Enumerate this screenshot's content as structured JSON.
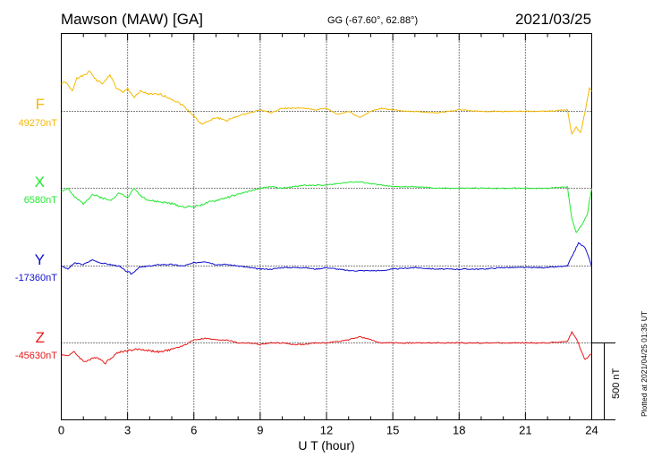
{
  "header": {
    "station": "Mawson (MAW)  [GA]",
    "coords": "GG (-67.60°,  62.88°)",
    "date": "2021/03/25"
  },
  "plotted_note": "Plotted at 2021/04/25 01:35 UT",
  "chart_data": {
    "type": "line",
    "title": "Mawson (MAW)  [GA]",
    "xlabel": "U T (hour)",
    "xlim": [
      0,
      24
    ],
    "xticks": [
      0,
      3,
      6,
      9,
      12,
      15,
      18,
      21,
      24
    ],
    "x_tick_labels": [
      "0",
      "3",
      "6",
      "9",
      "12",
      "15",
      "18",
      "21",
      "24"
    ],
    "scale_bar_label": "500 nT",
    "scale_bar_nT": 500,
    "grid": true,
    "series": [
      {
        "name": "F",
        "baseline_label": "49270nT",
        "color": "#f5b800",
        "points": [
          [
            0,
            180
          ],
          [
            0.2,
            190
          ],
          [
            0.5,
            130
          ],
          [
            0.7,
            220
          ],
          [
            1.0,
            230
          ],
          [
            1.3,
            260
          ],
          [
            1.6,
            200
          ],
          [
            1.9,
            180
          ],
          [
            2.2,
            240
          ],
          [
            2.5,
            150
          ],
          [
            2.8,
            120
          ],
          [
            3.0,
            150
          ],
          [
            3.3,
            90
          ],
          [
            3.6,
            130
          ],
          [
            4.0,
            110
          ],
          [
            4.5,
            110
          ],
          [
            5.0,
            80
          ],
          [
            5.5,
            40
          ],
          [
            6.0,
            -30
          ],
          [
            6.3,
            -80
          ],
          [
            6.6,
            -70
          ],
          [
            7.0,
            -40
          ],
          [
            7.5,
            -60
          ],
          [
            8.0,
            -30
          ],
          [
            8.5,
            -10
          ],
          [
            9.0,
            10
          ],
          [
            9.5,
            -10
          ],
          [
            10.0,
            20
          ],
          [
            10.5,
            20
          ],
          [
            11.0,
            20
          ],
          [
            11.5,
            10
          ],
          [
            12.0,
            20
          ],
          [
            12.5,
            -20
          ],
          [
            13.0,
            0
          ],
          [
            13.5,
            -40
          ],
          [
            14.0,
            0
          ],
          [
            14.5,
            20
          ],
          [
            15.0,
            10
          ],
          [
            15.5,
            0
          ],
          [
            16.0,
            0
          ],
          [
            17.0,
            -10
          ],
          [
            18.0,
            10
          ],
          [
            19.0,
            0
          ],
          [
            20.0,
            0
          ],
          [
            21.0,
            0
          ],
          [
            22.0,
            0
          ],
          [
            22.9,
            10
          ],
          [
            23.1,
            -150
          ],
          [
            23.3,
            -100
          ],
          [
            23.5,
            -140
          ],
          [
            23.7,
            0
          ],
          [
            23.9,
            150
          ],
          [
            24.0,
            130
          ]
        ]
      },
      {
        "name": "X",
        "baseline_label": "6580nT",
        "color": "#22e830",
        "points": [
          [
            0,
            -20
          ],
          [
            0.3,
            0
          ],
          [
            0.6,
            -60
          ],
          [
            1.0,
            -100
          ],
          [
            1.4,
            -40
          ],
          [
            1.8,
            -60
          ],
          [
            2.2,
            -80
          ],
          [
            2.6,
            -30
          ],
          [
            3.0,
            -60
          ],
          [
            3.3,
            0
          ],
          [
            3.6,
            -50
          ],
          [
            4.0,
            -80
          ],
          [
            4.5,
            -90
          ],
          [
            5.0,
            -100
          ],
          [
            5.5,
            -120
          ],
          [
            6.0,
            -120
          ],
          [
            6.5,
            -100
          ],
          [
            7.0,
            -80
          ],
          [
            7.5,
            -60
          ],
          [
            8.0,
            -40
          ],
          [
            8.5,
            -20
          ],
          [
            9.0,
            0
          ],
          [
            9.5,
            10
          ],
          [
            10.0,
            0
          ],
          [
            10.5,
            10
          ],
          [
            11.0,
            20
          ],
          [
            11.5,
            20
          ],
          [
            12.0,
            20
          ],
          [
            12.5,
            30
          ],
          [
            13.0,
            40
          ],
          [
            13.5,
            40
          ],
          [
            14.0,
            30
          ],
          [
            14.5,
            20
          ],
          [
            15.0,
            10
          ],
          [
            16.0,
            10
          ],
          [
            17.0,
            0
          ],
          [
            18.0,
            0
          ],
          [
            19.0,
            0
          ],
          [
            20.0,
            0
          ],
          [
            21.0,
            0
          ],
          [
            22.0,
            0
          ],
          [
            22.9,
            10
          ],
          [
            23.1,
            -200
          ],
          [
            23.3,
            -290
          ],
          [
            23.5,
            -250
          ],
          [
            23.8,
            -170
          ],
          [
            24.0,
            0
          ]
        ]
      },
      {
        "name": "Y",
        "baseline_label": "-17360nT",
        "color": "#1010d0",
        "points": [
          [
            0,
            0
          ],
          [
            0.3,
            -20
          ],
          [
            0.6,
            20
          ],
          [
            1.0,
            10
          ],
          [
            1.4,
            40
          ],
          [
            1.8,
            20
          ],
          [
            2.2,
            10
          ],
          [
            2.6,
            0
          ],
          [
            3.0,
            -40
          ],
          [
            3.2,
            -50
          ],
          [
            3.5,
            -10
          ],
          [
            4.0,
            0
          ],
          [
            4.5,
            10
          ],
          [
            5.0,
            10
          ],
          [
            5.5,
            0
          ],
          [
            6.0,
            20
          ],
          [
            6.5,
            30
          ],
          [
            7.0,
            10
          ],
          [
            7.5,
            10
          ],
          [
            8.0,
            0
          ],
          [
            8.5,
            -10
          ],
          [
            9.0,
            -20
          ],
          [
            9.5,
            -20
          ],
          [
            10.0,
            -10
          ],
          [
            10.5,
            -10
          ],
          [
            11.0,
            -10
          ],
          [
            11.5,
            -20
          ],
          [
            12.0,
            -10
          ],
          [
            12.5,
            -20
          ],
          [
            13.0,
            -30
          ],
          [
            13.5,
            -30
          ],
          [
            14.0,
            -30
          ],
          [
            14.5,
            -30
          ],
          [
            15.0,
            -20
          ],
          [
            16.0,
            -10
          ],
          [
            17.0,
            -20
          ],
          [
            18.0,
            -20
          ],
          [
            19.0,
            -20
          ],
          [
            20.0,
            -10
          ],
          [
            21.0,
            -10
          ],
          [
            22.0,
            -10
          ],
          [
            22.9,
            0
          ],
          [
            23.1,
            60
          ],
          [
            23.4,
            150
          ],
          [
            23.7,
            120
          ],
          [
            24.0,
            0
          ]
        ]
      },
      {
        "name": "Z",
        "baseline_label": "-45630nT",
        "color": "#e81818",
        "points": [
          [
            0,
            -80
          ],
          [
            0.3,
            -80
          ],
          [
            0.6,
            -60
          ],
          [
            1.0,
            -120
          ],
          [
            1.3,
            -110
          ],
          [
            1.6,
            -90
          ],
          [
            2.0,
            -130
          ],
          [
            2.3,
            -90
          ],
          [
            2.6,
            -60
          ],
          [
            3.0,
            -50
          ],
          [
            3.5,
            -40
          ],
          [
            4.0,
            -50
          ],
          [
            4.5,
            -60
          ],
          [
            5.0,
            -40
          ],
          [
            5.5,
            -20
          ],
          [
            6.0,
            20
          ],
          [
            6.5,
            30
          ],
          [
            7.0,
            20
          ],
          [
            7.5,
            20
          ],
          [
            8.0,
            0
          ],
          [
            8.5,
            0
          ],
          [
            9.0,
            -10
          ],
          [
            9.5,
            0
          ],
          [
            10.0,
            0
          ],
          [
            10.5,
            -10
          ],
          [
            11.0,
            -10
          ],
          [
            11.5,
            0
          ],
          [
            12.0,
            0
          ],
          [
            12.5,
            10
          ],
          [
            13.0,
            20
          ],
          [
            13.5,
            40
          ],
          [
            14.0,
            20
          ],
          [
            14.5,
            0
          ],
          [
            15.0,
            0
          ],
          [
            16.0,
            0
          ],
          [
            17.0,
            0
          ],
          [
            18.0,
            0
          ],
          [
            19.0,
            0
          ],
          [
            20.0,
            0
          ],
          [
            21.0,
            0
          ],
          [
            22.0,
            0
          ],
          [
            22.9,
            10
          ],
          [
            23.1,
            70
          ],
          [
            23.3,
            30
          ],
          [
            23.5,
            -40
          ],
          [
            23.7,
            -110
          ],
          [
            24.0,
            -70
          ]
        ]
      }
    ]
  }
}
